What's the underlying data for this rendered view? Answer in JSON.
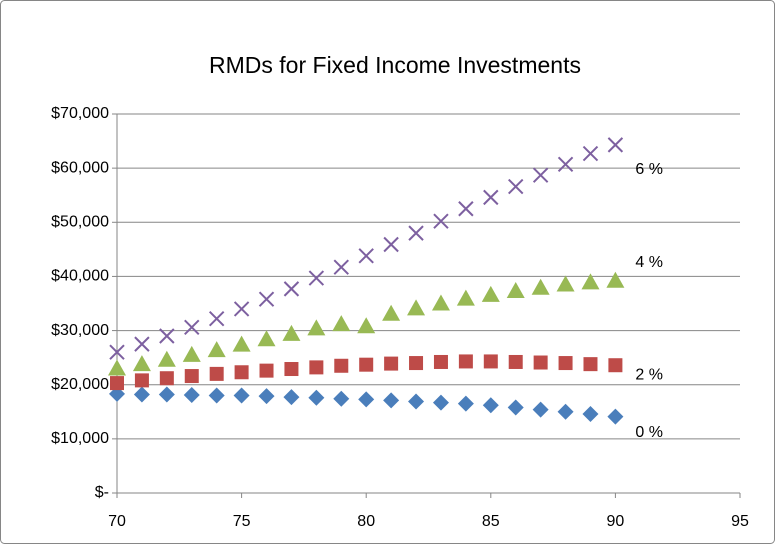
{
  "chart_data": {
    "type": "scatter",
    "title": "RMDs for Fixed Income Investments",
    "x": [
      70,
      71,
      72,
      73,
      74,
      75,
      76,
      77,
      78,
      79,
      80,
      81,
      82,
      83,
      84,
      85,
      86,
      87,
      88,
      89,
      90
    ],
    "series": [
      {
        "name": "0 %",
        "color": "#4a7ebb",
        "marker": "diamond",
        "values": [
          18300,
          18200,
          18200,
          18100,
          18000,
          18000,
          17900,
          17700,
          17600,
          17400,
          17300,
          17100,
          16900,
          16700,
          16500,
          16200,
          15800,
          15400,
          15000,
          14600,
          14100
        ]
      },
      {
        "name": "2 %",
        "color": "#be4b48",
        "marker": "square",
        "values": [
          20300,
          20800,
          21200,
          21600,
          22000,
          22300,
          22600,
          22900,
          23200,
          23500,
          23700,
          23900,
          24000,
          24200,
          24300,
          24300,
          24200,
          24100,
          24000,
          23800,
          23600
        ]
      },
      {
        "name": "4 %",
        "color": "#98b954",
        "marker": "triangle",
        "values": [
          23000,
          23800,
          24600,
          25500,
          26400,
          27400,
          28400,
          29400,
          30400,
          31200,
          30800,
          33100,
          34100,
          35000,
          35900,
          36600,
          37300,
          37900,
          38500,
          38900,
          39200
        ]
      },
      {
        "name": "6 %",
        "color": "#7d60a0",
        "marker": "x",
        "values": [
          26000,
          27500,
          29000,
          30600,
          32200,
          34000,
          35800,
          37700,
          39700,
          41700,
          43800,
          45900,
          48000,
          50200,
          52500,
          54600,
          56600,
          58700,
          60700,
          62700,
          64300
        ]
      }
    ],
    "xlim": [
      70,
      95
    ],
    "xticks": [
      70,
      75,
      80,
      85,
      90,
      95
    ],
    "ylim": [
      0,
      70000
    ],
    "yticks": [
      {
        "value": 0,
        "label": "$-"
      },
      {
        "value": 10000,
        "label": "$10,000"
      },
      {
        "value": 20000,
        "label": "$20,000"
      },
      {
        "value": 30000,
        "label": "$30,000"
      },
      {
        "value": 40000,
        "label": "$40,000"
      },
      {
        "value": 50000,
        "label": "$50,000"
      },
      {
        "value": 60000,
        "label": "$60,000"
      },
      {
        "value": 70000,
        "label": "$70,000"
      }
    ],
    "grid": true
  }
}
